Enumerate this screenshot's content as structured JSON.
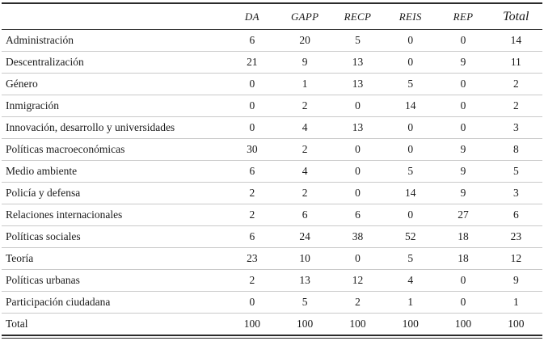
{
  "table": {
    "columns": [
      "DA",
      "GAPP",
      "RECP",
      "REIS",
      "REP",
      "Total"
    ],
    "rows": [
      {
        "label": "Administración",
        "values": [
          "6",
          "20",
          "5",
          "0",
          "0",
          "14"
        ]
      },
      {
        "label": "Descentralización",
        "values": [
          "21",
          "9",
          "13",
          "0",
          "9",
          "11"
        ]
      },
      {
        "label": "Género",
        "values": [
          "0",
          "1",
          "13",
          "5",
          "0",
          "2"
        ]
      },
      {
        "label": "Inmigración",
        "values": [
          "0",
          "2",
          "0",
          "14",
          "0",
          "2"
        ]
      },
      {
        "label": "Innovación, desarrollo y universidades",
        "values": [
          "0",
          "4",
          "13",
          "0",
          "0",
          "3"
        ]
      },
      {
        "label": "Políticas macroeconómicas",
        "values": [
          "30",
          "2",
          "0",
          "0",
          "9",
          "8"
        ]
      },
      {
        "label": "Medio ambiente",
        "values": [
          "6",
          "4",
          "0",
          "5",
          "9",
          "5"
        ]
      },
      {
        "label": "Policía y defensa",
        "values": [
          "2",
          "2",
          "0",
          "14",
          "9",
          "3"
        ]
      },
      {
        "label": "Relaciones internacionales",
        "values": [
          "2",
          "6",
          "6",
          "0",
          "27",
          "6"
        ]
      },
      {
        "label": "Políticas sociales",
        "values": [
          "6",
          "24",
          "38",
          "52",
          "18",
          "23"
        ]
      },
      {
        "label": "Teoría",
        "values": [
          "23",
          "10",
          "0",
          "5",
          "18",
          "12"
        ]
      },
      {
        "label": "Políticas urbanas",
        "values": [
          "2",
          "13",
          "12",
          "4",
          "0",
          "9"
        ]
      },
      {
        "label": "Participación ciudadana",
        "values": [
          "0",
          "5",
          "2",
          "1",
          "0",
          "1"
        ]
      },
      {
        "label": "Total",
        "values": [
          "100",
          "100",
          "100",
          "100",
          "100",
          "100"
        ]
      }
    ]
  }
}
